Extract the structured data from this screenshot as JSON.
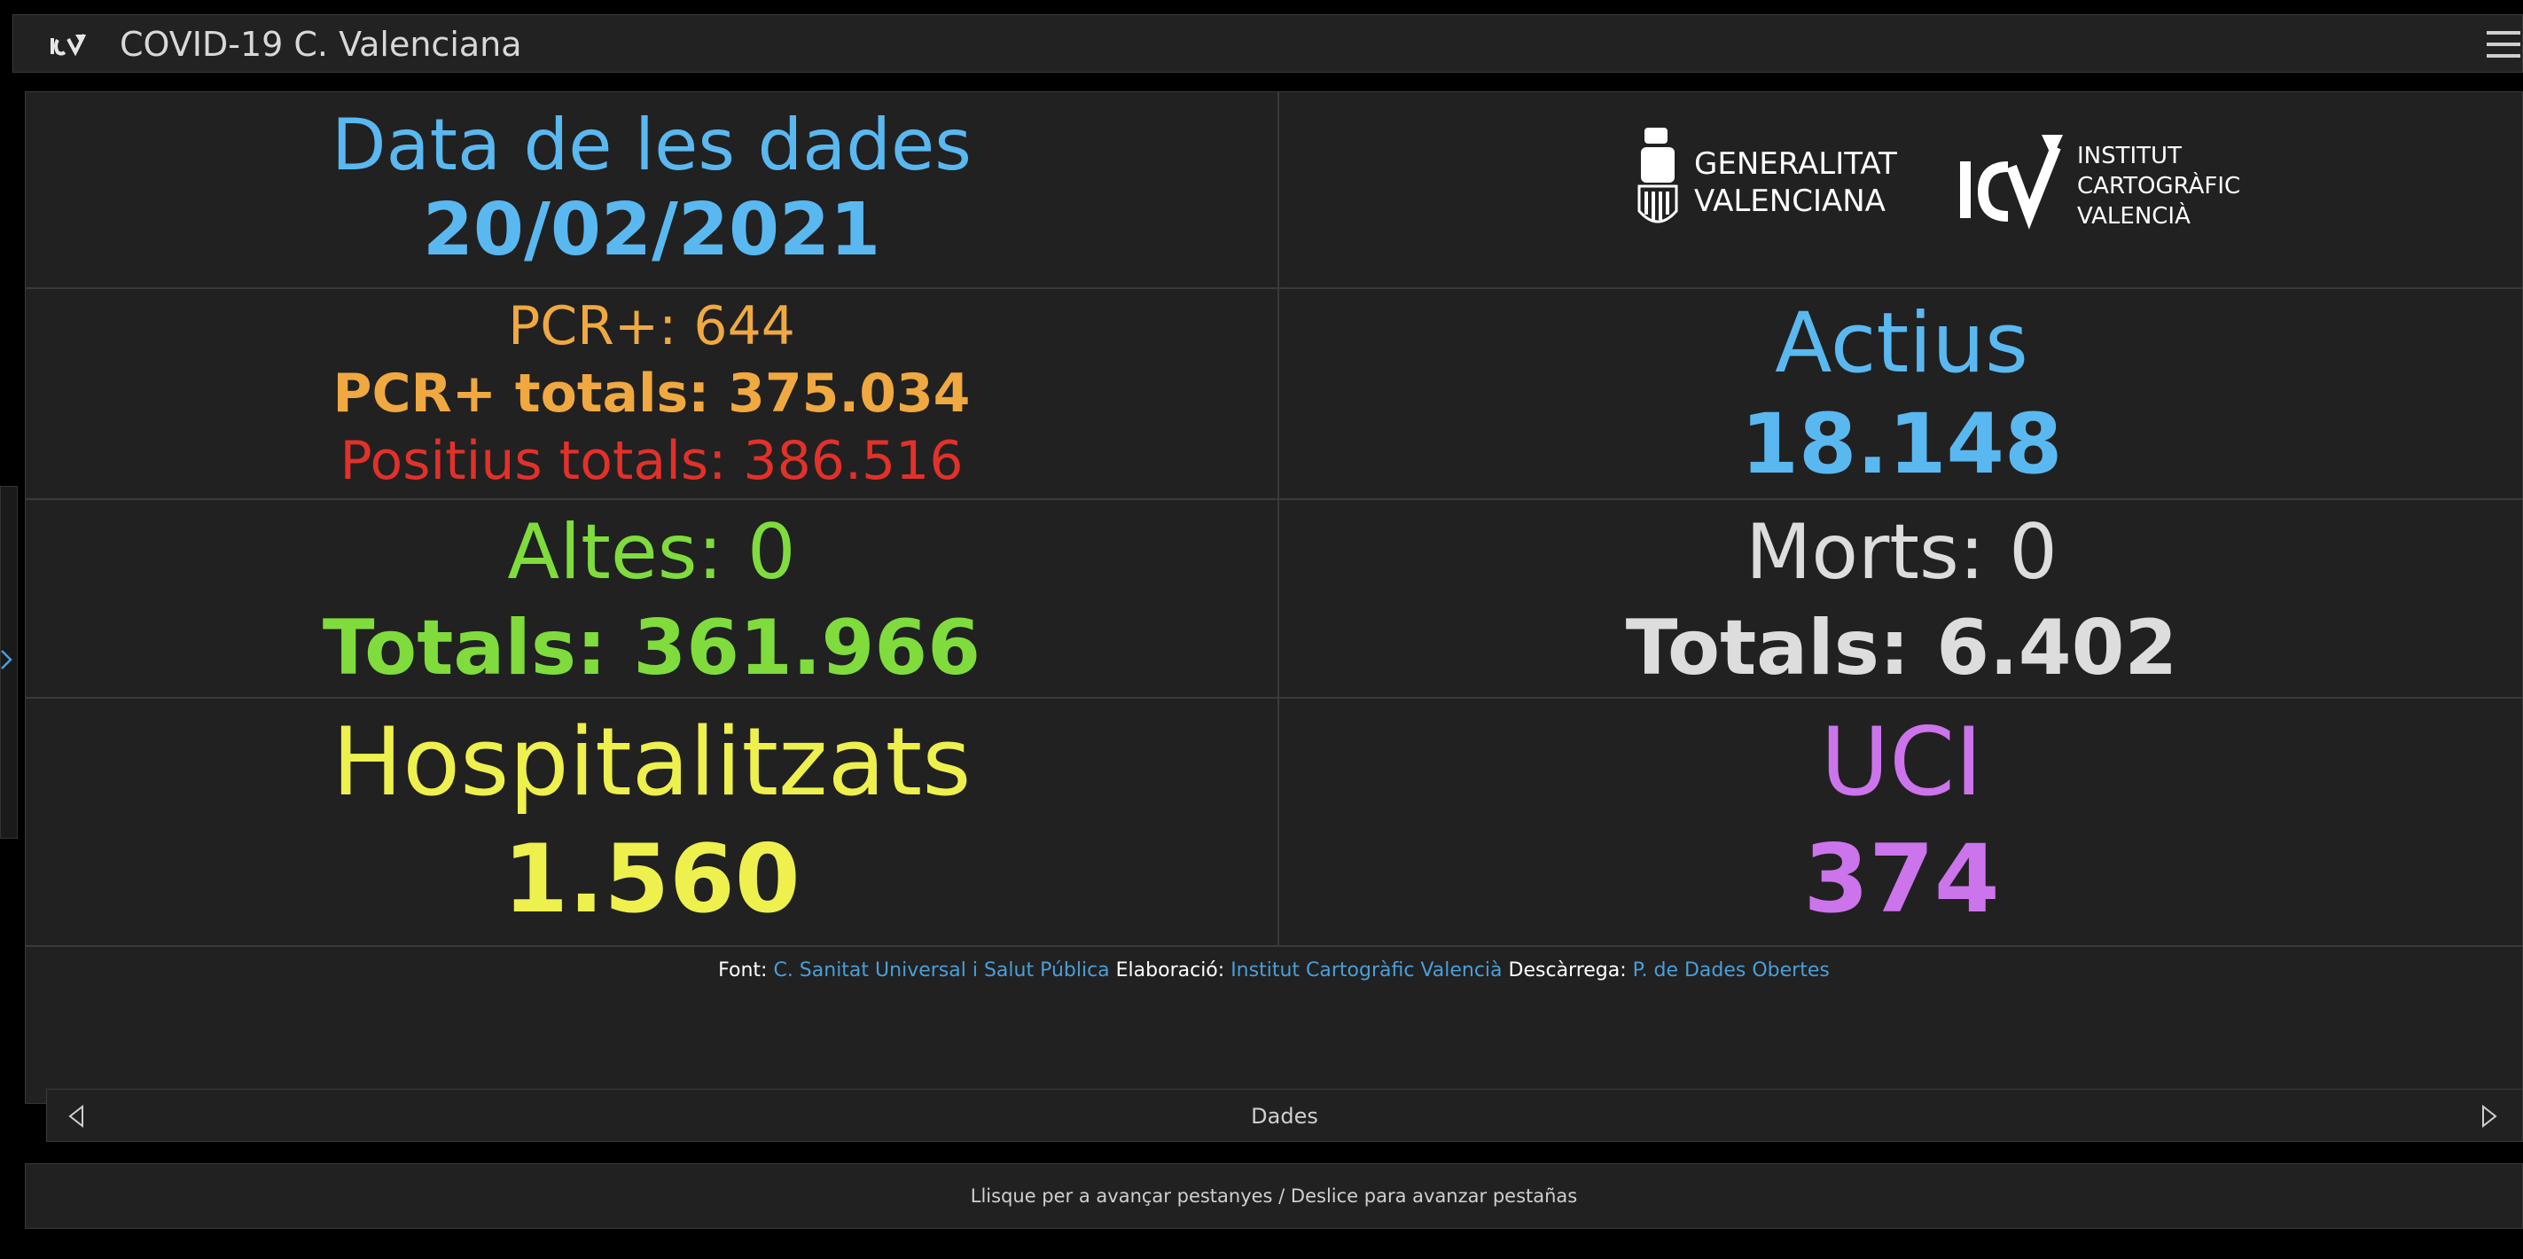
{
  "header": {
    "title": "COVID-19 C. Valenciana",
    "logo_icon": "icv-app-icon",
    "menu_icon": "hamburger-menu-icon"
  },
  "date_block": {
    "label": "Data de les dades",
    "value": "20/02/2021"
  },
  "logos": {
    "gv_line1": "GENERALITAT",
    "gv_line2": "VALENCIANA",
    "icv_mark": "ICV",
    "icv_line1": "INSTITUT",
    "icv_line2": "CARTOGRÀFIC",
    "icv_line3": "VALENCIÀ"
  },
  "pcr": {
    "daily": "PCR+: 644",
    "total": "PCR+ totals: 375.034",
    "positives_total": "Positius totals: 386.516"
  },
  "active": {
    "label": "Actius",
    "value": "18.148"
  },
  "discharges": {
    "daily": "Altes: 0",
    "total": "Totals: 361.966"
  },
  "deaths": {
    "daily": "Morts: 0",
    "total": "Totals: 6.402"
  },
  "hospitalized": {
    "label": "Hospitalitzats",
    "value": "1.560"
  },
  "icu": {
    "label": "UCI",
    "value": "374"
  },
  "footer": {
    "source_label": "Font:",
    "source_link": "C. Sanitat Universal i Salut Pública",
    "made_label": "Elaboració:",
    "made_link": "Institut Cartogràfic Valencià",
    "download_label": "Descàrrega:",
    "download_link": "P. de Dades Obertes"
  },
  "tabs": {
    "current": "Dades"
  },
  "hint": "Llisque per a avançar pestanyes / Deslice para avanzar pestañas",
  "colors": {
    "blue": "#5ab8f0",
    "orange": "#f0a840",
    "red": "#e2312a",
    "green": "#7fdc3c",
    "grey": "#dddddd",
    "yellow": "#eef04e",
    "purple": "#cc74ec"
  }
}
